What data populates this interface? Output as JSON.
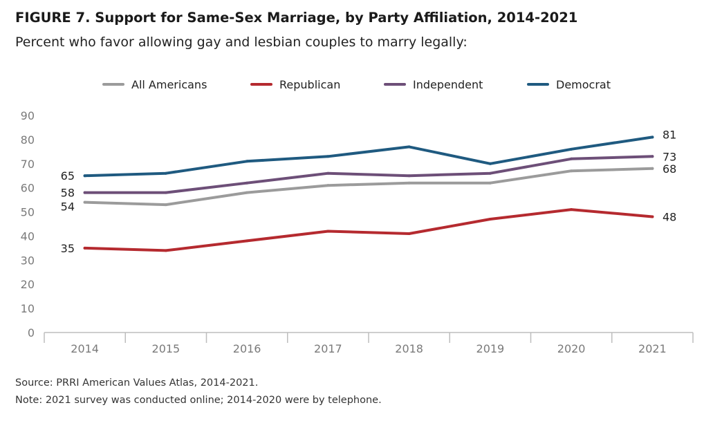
{
  "title": "FIGURE 7.  Support for Same-Sex Marriage, by Party Affiliation, 2014-2021",
  "subtitle": "Percent who favor allowing gay and lesbian couples to marry legally:",
  "notes": {
    "source": "Source: PRRI American Values Atlas, 2014-2021.",
    "note": "Note: 2021 survey was conducted online; 2014-2020 were by telephone."
  },
  "chart_data": {
    "type": "line",
    "title": "FIGURE 7.  Support for Same-Sex Marriage, by Party Affiliation, 2014-2021",
    "subtitle": "Percent who favor allowing gay and lesbian couples to marry legally:",
    "xlabel": "",
    "ylabel": "",
    "x": [
      "2014",
      "2015",
      "2016",
      "2017",
      "2018",
      "2019",
      "2020",
      "2021"
    ],
    "ylim": [
      0,
      90
    ],
    "yticks": [
      0,
      10,
      20,
      30,
      40,
      50,
      60,
      70,
      80,
      90
    ],
    "grid": false,
    "legend_position": "top",
    "series": [
      {
        "name": "All Americans",
        "color": "#9b9b9b",
        "values": [
          54,
          53,
          58,
          61,
          62,
          62,
          67,
          68
        ],
        "labels": {
          "start": "54",
          "end": "68"
        }
      },
      {
        "name": "Republican",
        "color": "#b52a2f",
        "values": [
          35,
          34,
          38,
          42,
          41,
          47,
          51,
          48
        ],
        "labels": {
          "start": "35",
          "end": "48"
        }
      },
      {
        "name": "Independent",
        "color": "#6d4f78",
        "values": [
          58,
          58,
          62,
          66,
          65,
          66,
          72,
          73
        ],
        "labels": {
          "start": "58",
          "end": "73"
        }
      },
      {
        "name": "Democrat",
        "color": "#1f5a80",
        "values": [
          65,
          66,
          71,
          73,
          77,
          70,
          76,
          81
        ],
        "labels": {
          "start": "65",
          "end": "81"
        }
      }
    ]
  }
}
